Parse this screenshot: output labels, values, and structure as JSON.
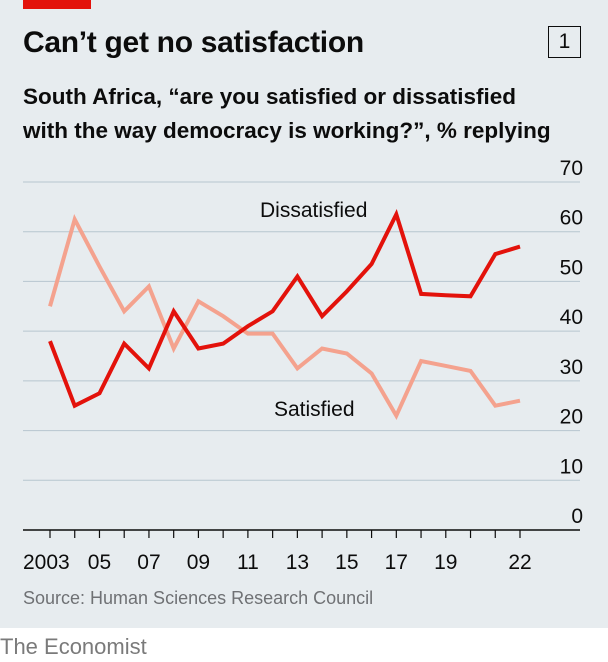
{
  "header": {
    "title": "Can’t get no satisfaction",
    "chart_number": "1",
    "subtitle_line1": "South Africa, “are you satisfied or dissatisfied",
    "subtitle_line2": "with the way democracy is working?”, % replying"
  },
  "footer": {
    "source": "Source: Human Sciences Research Council",
    "brand": "The Economist"
  },
  "colors": {
    "dissatisfied": "#e3120b",
    "satisfied": "#f4a28e",
    "accent": "#e3120b",
    "background": "#e7ecef",
    "grid": "#b7c6cf"
  },
  "chart_data": {
    "type": "line",
    "title": "Can’t get no satisfaction",
    "subtitle": "South Africa, “are you satisfied or dissatisfied with the way democracy is working?”, % replying",
    "ylim": [
      0,
      70
    ],
    "xlim": [
      2003,
      2022
    ],
    "y_ticks": [
      0,
      10,
      20,
      30,
      40,
      50,
      60,
      70
    ],
    "y_tick_labels": [
      "0",
      "10",
      "20",
      "30",
      "40",
      "50",
      "60",
      "70"
    ],
    "x_ticks": [
      2003,
      2005,
      2007,
      2009,
      2011,
      2013,
      2015,
      2017,
      2019,
      2022
    ],
    "x_tick_labels": [
      "2003",
      "05",
      "07",
      "09",
      "11",
      "13",
      "15",
      "17",
      "19",
      "22"
    ],
    "y_axis_side": "right",
    "grid": true,
    "series": [
      {
        "name": "Dissatisfied",
        "color": "#e3120b",
        "x": [
          2003,
          2004,
          2005,
          2006,
          2007,
          2008,
          2009,
          2010,
          2011,
          2012,
          2013,
          2014,
          2015,
          2016,
          2017,
          2018,
          2019,
          2020,
          2021,
          2022
        ],
        "y": [
          38,
          25,
          27.5,
          37.5,
          32.5,
          44,
          36.5,
          37.5,
          41,
          44,
          51,
          43,
          48,
          53.5,
          63.5,
          47.5,
          47.2,
          47,
          55.5,
          57
        ]
      },
      {
        "name": "Satisfied",
        "color": "#f4a28e",
        "x": [
          2003,
          2004,
          2005,
          2006,
          2007,
          2008,
          2009,
          2010,
          2011,
          2012,
          2013,
          2014,
          2015,
          2016,
          2017,
          2018,
          2019,
          2020,
          2021,
          2022
        ],
        "y": [
          45,
          62.5,
          53,
          44,
          49,
          36.5,
          46,
          43,
          39.5,
          39.5,
          32.5,
          36.5,
          35.5,
          31.5,
          23,
          34,
          33,
          32,
          25,
          26
        ]
      }
    ]
  }
}
